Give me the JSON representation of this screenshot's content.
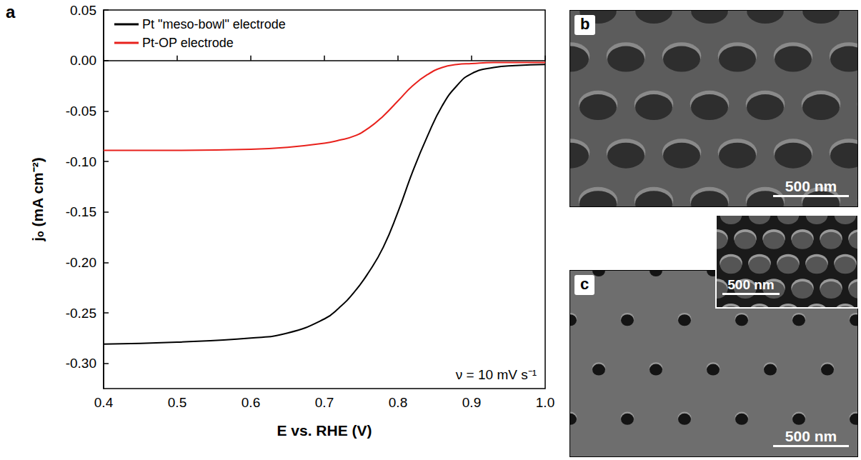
{
  "chart_data": {
    "type": "line",
    "panel": "a",
    "x_label": "E vs. RHE (V)",
    "y_label": "jₒ (mA cm⁻²)",
    "annotations": [
      "ν = 10 mV s⁻¹"
    ],
    "x": [
      0.4,
      0.5,
      0.6,
      0.65,
      0.7,
      0.72,
      0.74,
      0.76,
      0.78,
      0.8,
      0.82,
      0.84,
      0.86,
      0.88,
      0.9,
      0.93,
      0.96,
      1.0
    ],
    "series": [
      {
        "name": "Pt \"meso-bowl\" electrode",
        "color": "#000000",
        "values": [
          -0.281,
          -0.279,
          -0.275,
          -0.27,
          -0.256,
          -0.245,
          -0.23,
          -0.21,
          -0.185,
          -0.15,
          -0.11,
          -0.075,
          -0.045,
          -0.025,
          -0.013,
          -0.007,
          -0.005,
          -0.004
        ]
      },
      {
        "name": "Pt-OP electrode",
        "color": "#e8211c",
        "values": [
          -0.089,
          -0.089,
          -0.088,
          -0.086,
          -0.082,
          -0.079,
          -0.075,
          -0.067,
          -0.055,
          -0.04,
          -0.025,
          -0.014,
          -0.007,
          -0.004,
          -0.003,
          -0.002,
          -0.002,
          -0.002
        ]
      }
    ],
    "xlim": [
      0.4,
      1.0
    ],
    "xticks": [
      0.4,
      0.5,
      0.6,
      0.7,
      0.8,
      0.9,
      {
        "value": 1.0,
        "label": "1.0"
      }
    ],
    "ylim": [
      -0.325,
      0.05
    ],
    "yticks": [
      {
        "value": -0.3,
        "label": "-0.30"
      },
      {
        "value": -0.25,
        "label": "-0.25"
      },
      {
        "value": -0.2,
        "label": "-0.20"
      },
      {
        "value": -0.15,
        "label": "-0.15"
      },
      {
        "value": -0.1,
        "label": "-0.10"
      },
      -0.05,
      {
        "value": 0,
        "label": "0.00"
      },
      0.05
    ],
    "grid": false,
    "legend": "upper left"
  },
  "panels": [
    {
      "label": "b",
      "scale_bar": "500 nm"
    },
    {
      "label": "c",
      "scale_bar": "500 nm",
      "inset": {
        "scale_bar": "500 nm"
      }
    }
  ]
}
